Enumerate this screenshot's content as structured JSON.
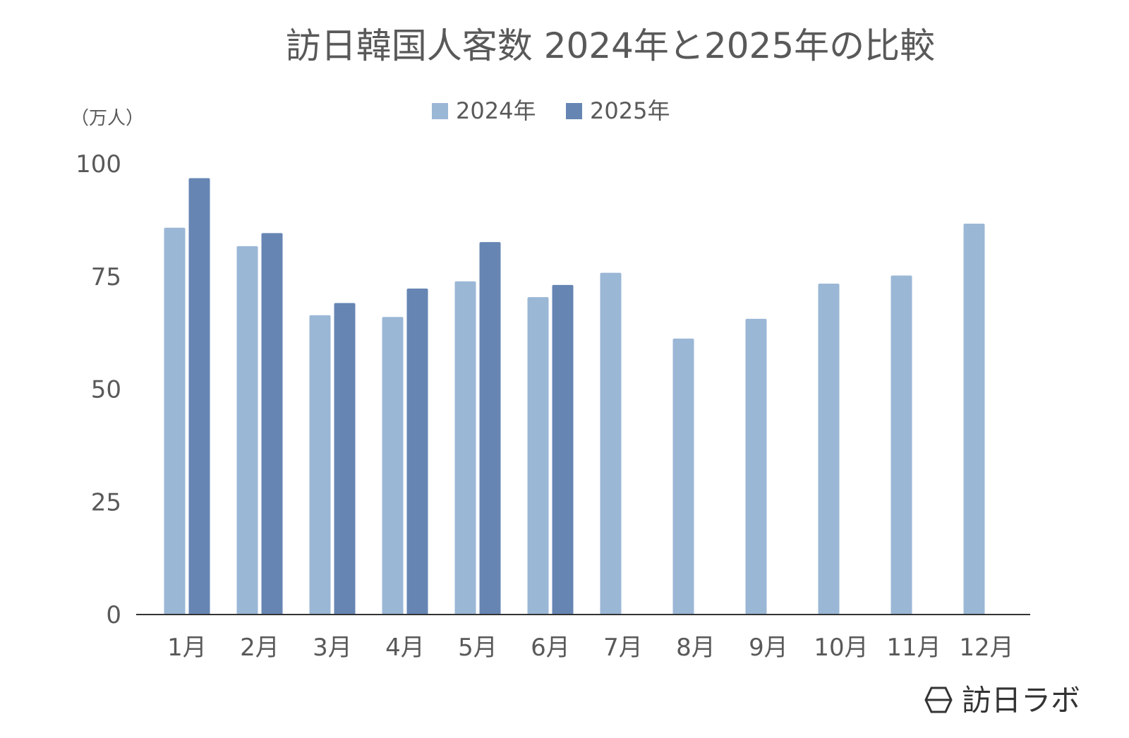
{
  "chart_data": {
    "type": "bar",
    "title": "訪日韓国人客数 2024年と2025年の比較",
    "ylabel": "（万人）",
    "xlabel": "",
    "categories": [
      "1月",
      "2月",
      "3月",
      "4月",
      "5月",
      "6月",
      "7月",
      "8月",
      "9月",
      "10月",
      "11月",
      "12月"
    ],
    "series": [
      {
        "name": "2024年",
        "color": "#9bb7d6",
        "values": [
          85.8,
          81.7,
          66.4,
          66.0,
          73.9,
          70.4,
          75.8,
          61.2,
          65.6,
          73.4,
          75.2,
          86.7
        ]
      },
      {
        "name": "2025年",
        "color": "#6685b3",
        "values": [
          96.8,
          84.6,
          69.1,
          72.3,
          82.6,
          73.1,
          null,
          null,
          null,
          null,
          null,
          null
        ]
      }
    ],
    "yticks": [
      0,
      25,
      50,
      75,
      100
    ],
    "ylim": [
      0,
      100
    ],
    "legend_position": "top-center",
    "grid": false
  },
  "branding": {
    "name": "訪日ラボ",
    "icon": "hexagon-logo-icon"
  },
  "colors": {
    "text": "#595959",
    "axis": "#333333"
  }
}
